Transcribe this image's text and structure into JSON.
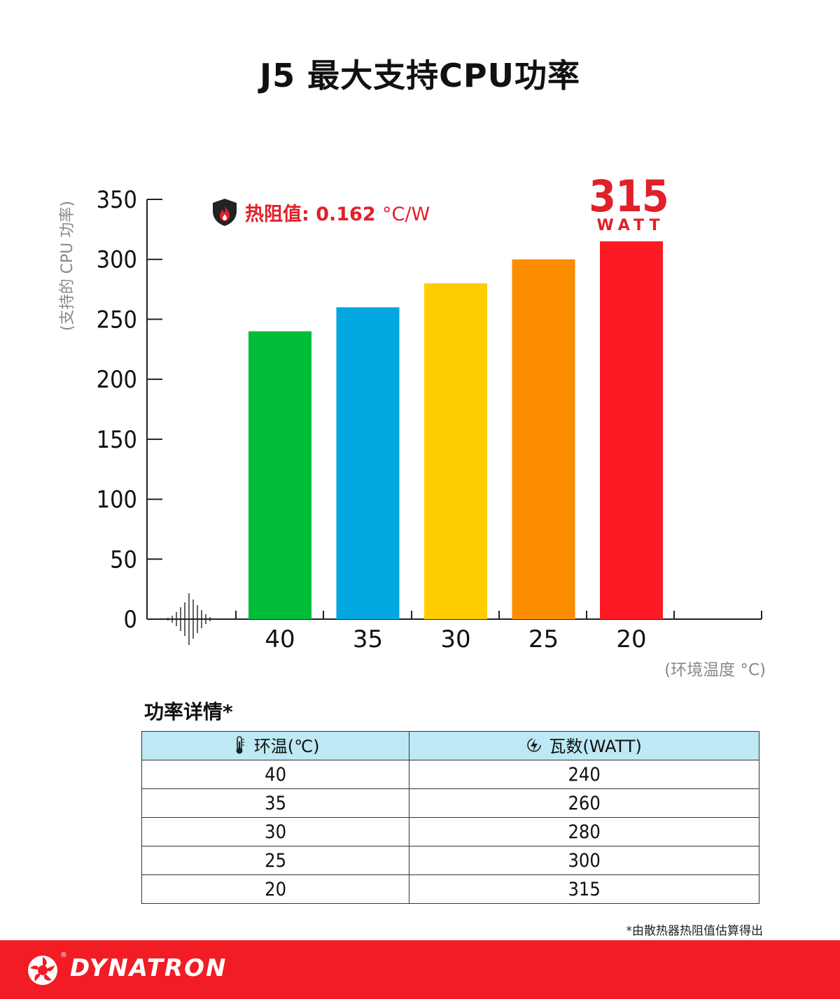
{
  "title": "J5 最大支持CPU功率",
  "thermal_resistance": {
    "label": "热阻值:",
    "value": "0.162",
    "unit": "°C/W",
    "icon": "shield-fire-icon"
  },
  "peak": {
    "value": "315",
    "unit": "WATT"
  },
  "chart_data": {
    "type": "bar",
    "categories": [
      "40",
      "35",
      "30",
      "25",
      "20"
    ],
    "values": [
      240,
      260,
      280,
      300,
      315
    ],
    "colors": [
      "#00bd3a",
      "#01a7df",
      "#fecd00",
      "#fc8c00",
      "#fd1a24"
    ],
    "ylabel": "(支持的 CPU 功率)",
    "xlabel": "(环境温度 °C)",
    "ylim": [
      0,
      350
    ],
    "yticks": [
      0,
      50,
      100,
      150,
      200,
      250,
      300,
      350
    ],
    "grid": false
  },
  "table": {
    "title": "功率详情*",
    "headers": [
      {
        "label": "环温(℃)",
        "icon": "thermometer-icon"
      },
      {
        "label": "瓦数(WATT)",
        "icon": "lightning-icon"
      }
    ],
    "rows": [
      [
        "40",
        "240"
      ],
      [
        "35",
        "260"
      ],
      [
        "30",
        "280"
      ],
      [
        "25",
        "300"
      ],
      [
        "20",
        "315"
      ]
    ],
    "footnote": "*由散热器热阻值估算得出"
  },
  "brand": {
    "name": "DYNATRON",
    "reg": "®",
    "color": "#f21c24"
  },
  "accent_color": "#e0202a"
}
